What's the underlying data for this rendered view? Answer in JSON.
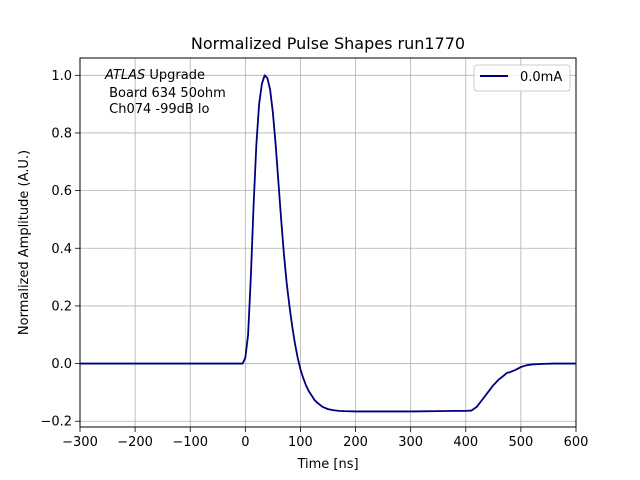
{
  "chart_data": {
    "type": "line",
    "title": "Normalized Pulse Shapes run1770",
    "xlabel": "Time [ns]",
    "ylabel": "Normalized Amplitude (A.U.)",
    "xlim": [
      -300,
      600
    ],
    "ylim": [
      -0.22,
      1.06
    ],
    "xticks": [
      -300,
      -200,
      -100,
      0,
      100,
      200,
      300,
      400,
      500,
      600
    ],
    "xtick_labels": [
      "−300",
      "−200",
      "−100",
      "0",
      "100",
      "200",
      "300",
      "400",
      "500",
      "600"
    ],
    "yticks": [
      -0.2,
      0.0,
      0.2,
      0.4,
      0.6,
      0.8,
      1.0
    ],
    "ytick_labels": [
      "−0.2",
      "0.0",
      "0.2",
      "0.4",
      "0.6",
      "0.8",
      "1.0"
    ],
    "grid": true,
    "legend_position": "top-right",
    "annotation": {
      "line1_italic": "ATLAS",
      "line1_rest": " Upgrade",
      "line2": " Board 634 50ohm",
      "line3": " Ch074 -99dB lo"
    },
    "series": [
      {
        "name": "0.0mA",
        "color": "#000080",
        "x": [
          -300,
          -200,
          -100,
          -20,
          -5,
          0,
          5,
          10,
          15,
          20,
          25,
          30,
          35,
          40,
          45,
          50,
          55,
          60,
          65,
          70,
          75,
          80,
          85,
          90,
          95,
          100,
          105,
          110,
          115,
          120,
          125,
          130,
          140,
          150,
          160,
          170,
          180,
          200,
          220,
          250,
          300,
          350,
          380,
          400,
          410,
          420,
          430,
          440,
          450,
          460,
          470,
          475,
          480,
          490,
          500,
          510,
          520,
          540,
          560,
          600
        ],
        "y": [
          0.0,
          0.0,
          0.0,
          0.0,
          0.0,
          0.02,
          0.1,
          0.3,
          0.55,
          0.76,
          0.9,
          0.97,
          1.0,
          0.99,
          0.95,
          0.87,
          0.76,
          0.63,
          0.5,
          0.38,
          0.28,
          0.2,
          0.13,
          0.07,
          0.02,
          -0.02,
          -0.05,
          -0.075,
          -0.095,
          -0.11,
          -0.125,
          -0.135,
          -0.15,
          -0.158,
          -0.162,
          -0.164,
          -0.165,
          -0.166,
          -0.166,
          -0.166,
          -0.166,
          -0.165,
          -0.164,
          -0.164,
          -0.163,
          -0.15,
          -0.125,
          -0.1,
          -0.075,
          -0.055,
          -0.04,
          -0.032,
          -0.03,
          -0.022,
          -0.012,
          -0.006,
          -0.003,
          -0.001,
          0.0,
          0.0
        ]
      }
    ]
  }
}
